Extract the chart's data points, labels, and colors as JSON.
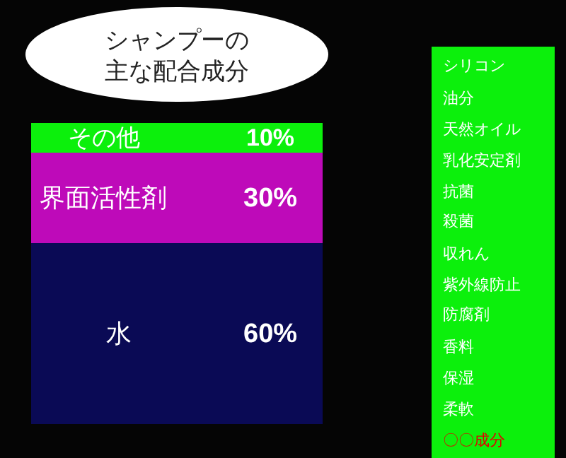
{
  "chart_data": {
    "type": "bar",
    "stacked": true,
    "title": "シャンプーの主な配合成分",
    "categories": [
      null
    ],
    "legend": false,
    "series": [
      {
        "name": "水",
        "color": "#0a0a55",
        "values": [
          60
        ],
        "value_labels": [
          "60%"
        ]
      },
      {
        "name": "界面活性剤",
        "color": "#be0ab9",
        "values": [
          30
        ],
        "value_labels": [
          "30%"
        ]
      },
      {
        "name": "その他",
        "color": "#0cf00c",
        "values": [
          10
        ],
        "value_labels": [
          "10%"
        ]
      }
    ],
    "annotations": [
      "シリコン",
      "油分",
      "天然オイル",
      "乳化安定剤",
      "抗菌",
      "殺菌",
      "収れん",
      "紫外線防止",
      "防腐剤",
      "香料",
      "保湿",
      "柔軟",
      "〇〇成分"
    ]
  }
}
